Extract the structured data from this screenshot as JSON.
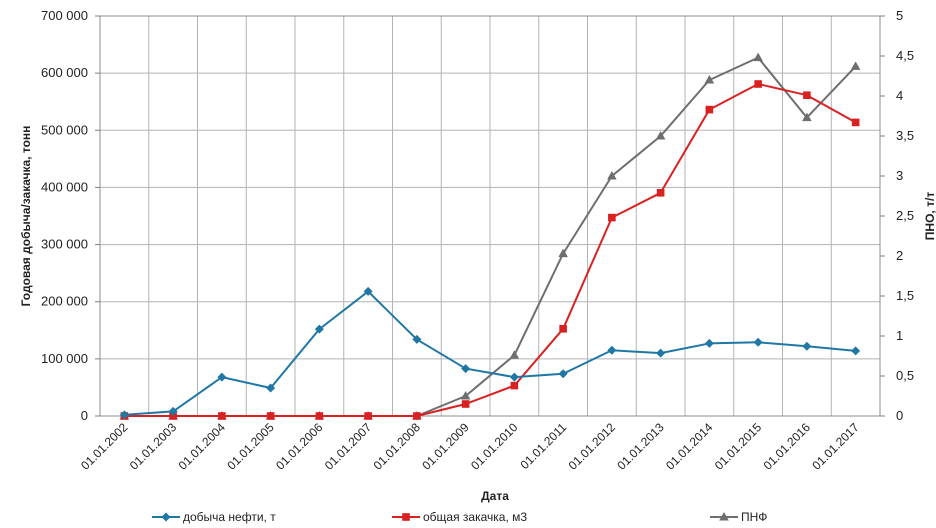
{
  "chart_data": {
    "type": "line",
    "categories": [
      "01.01.2002",
      "01.01.2003",
      "01.01.2004",
      "01.01.2005",
      "01.01.2006",
      "01.01.2007",
      "01.01.2008",
      "01.01.2009",
      "01.01.2010",
      "01.01.2011",
      "01.01.2012",
      "01.01.2013",
      "01.01.2014",
      "01.01.2015",
      "01.01.2016",
      "01.01.2017"
    ],
    "xlabel": "Дата",
    "ylabel": "Годовая добыча/закачка, тонн",
    "y2label": "ПНО, т/т",
    "ylim": [
      0,
      700000
    ],
    "y2lim": [
      0,
      5
    ],
    "yticks": [
      "0",
      "100 000",
      "200 000",
      "300 000",
      "400 000",
      "500 000",
      "600 000",
      "700 000"
    ],
    "y2ticks": [
      "0",
      "0,5",
      "1",
      "1,5",
      "2",
      "2,5",
      "3",
      "3,5",
      "4",
      "4,5",
      "5"
    ],
    "grid": true,
    "legend_position": "bottom",
    "series": [
      {
        "name": "добыча нефти, т",
        "axis": "left",
        "color": "#1f77a6",
        "marker": "diamond",
        "values": [
          2000,
          8000,
          68000,
          49000,
          152000,
          218000,
          134000,
          83000,
          68000,
          74000,
          115000,
          110000,
          127000,
          129000,
          122000,
          114000
        ]
      },
      {
        "name": "общая закачка, м3",
        "axis": "right",
        "color": "#d92121",
        "marker": "square",
        "values": [
          0,
          0,
          0,
          0,
          0,
          0,
          0,
          0.15,
          0.38,
          1.09,
          2.48,
          2.79,
          3.83,
          4.15,
          4.01,
          3.67
        ]
      },
      {
        "name": "ПНФ",
        "axis": "right",
        "color": "#6e6e6e",
        "marker": "triangle",
        "values": [
          0,
          0,
          0,
          0,
          0,
          0,
          0,
          0.25,
          0.76,
          2.03,
          3.0,
          3.5,
          4.2,
          4.48,
          3.73,
          4.37
        ]
      }
    ]
  }
}
